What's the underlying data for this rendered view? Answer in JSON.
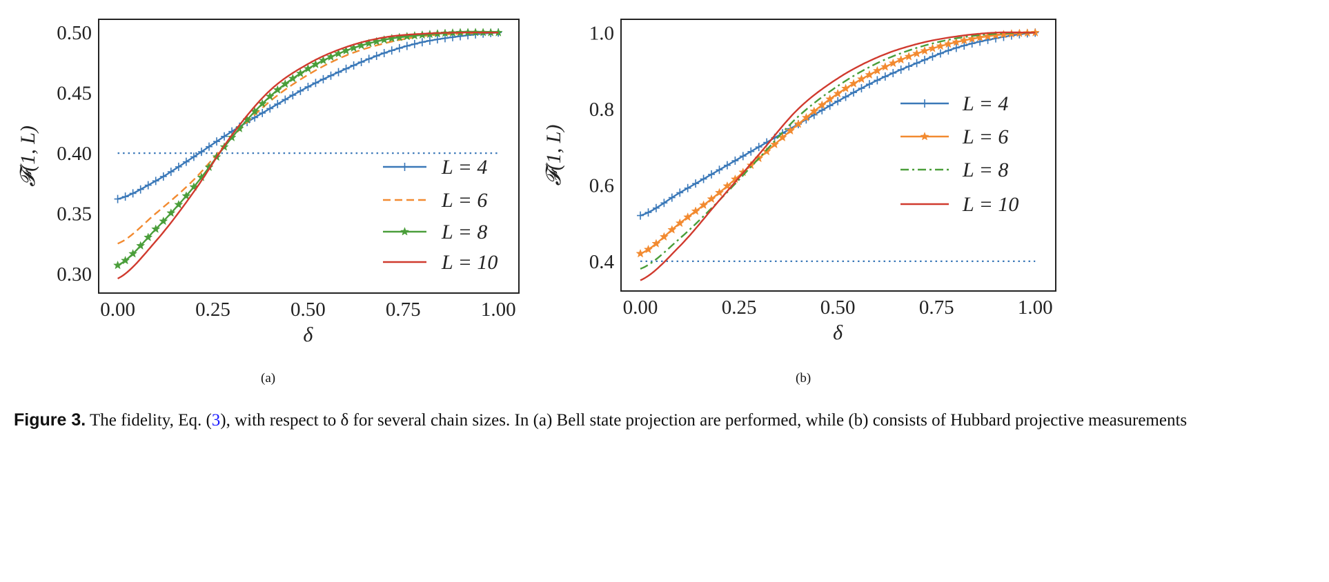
{
  "colors": {
    "blue": "#3a78b8",
    "orange": "#f28a30",
    "green": "#4a9e3a",
    "red": "#d03a2e",
    "axis": "#222222"
  },
  "chart_data": [
    {
      "type": "line",
      "panel_label": "(a)",
      "xlabel": "δ",
      "ylabel": "𝓕(1, L)",
      "xlim": [
        -0.05,
        1.054
      ],
      "ylim": [
        0.284,
        0.511
      ],
      "xticks": [
        0.0,
        0.25,
        0.5,
        0.75,
        1.0
      ],
      "xtick_labels": [
        "0.00",
        "0.25",
        "0.50",
        "0.75",
        "1.00"
      ],
      "yticks": [
        0.3,
        0.35,
        0.4,
        0.45,
        0.5
      ],
      "ytick_labels": [
        "0.30",
        "0.35",
        "0.40",
        "0.45",
        "0.50"
      ],
      "grid": false,
      "legend_position": "lower-right",
      "x": [
        0,
        0.1,
        0.2,
        0.3,
        0.4,
        0.5,
        0.6,
        0.7,
        0.8,
        0.9,
        1.0
      ],
      "series": [
        {
          "name": "L = 4",
          "color": "#3a78b8",
          "style": "solid",
          "marker": "plus",
          "values": [
            0.362,
            0.377,
            0.397,
            0.418,
            0.437,
            0.455,
            0.47,
            0.483,
            0.492,
            0.497,
            0.5
          ]
        },
        {
          "name": "L = 6",
          "color": "#f28a30",
          "style": "dashed",
          "marker": "none",
          "values": [
            0.325,
            0.35,
            0.378,
            0.413,
            0.443,
            0.465,
            0.481,
            0.491,
            0.497,
            0.499,
            0.5
          ]
        },
        {
          "name": "L = 8",
          "color": "#4a9e3a",
          "style": "solid",
          "marker": "star",
          "values": [
            0.307,
            0.337,
            0.372,
            0.413,
            0.447,
            0.47,
            0.485,
            0.494,
            0.498,
            0.5,
            0.5
          ]
        },
        {
          "name": "L = 10",
          "color": "#d03a2e",
          "style": "solid",
          "marker": "none",
          "values": [
            0.296,
            0.327,
            0.368,
            0.415,
            0.452,
            0.474,
            0.488,
            0.496,
            0.499,
            0.5,
            0.5
          ]
        }
      ],
      "reference_line": {
        "y": 0.4,
        "x_range": [
          0,
          1
        ],
        "color": "#3a78b8",
        "style": "dotted"
      }
    },
    {
      "type": "line",
      "panel_label": "(b)",
      "xlabel": "δ",
      "ylabel": "𝓕(1, L)",
      "xlim": [
        -0.049,
        1.052
      ],
      "ylim": [
        0.322,
        1.035
      ],
      "xticks": [
        0.0,
        0.25,
        0.5,
        0.75,
        1.0
      ],
      "xtick_labels": [
        "0.00",
        "0.25",
        "0.50",
        "0.75",
        "1.00"
      ],
      "yticks": [
        0.4,
        0.6,
        0.8,
        1.0
      ],
      "ytick_labels": [
        "0.4",
        "0.6",
        "0.8",
        "1.0"
      ],
      "grid": false,
      "legend_position": "upper-right",
      "x": [
        0,
        0.1,
        0.2,
        0.3,
        0.4,
        0.5,
        0.6,
        0.7,
        0.8,
        0.9,
        1.0
      ],
      "series": [
        {
          "name": "L = 4",
          "color": "#3a78b8",
          "style": "solid",
          "marker": "plus",
          "values": [
            0.52,
            0.58,
            0.64,
            0.7,
            0.76,
            0.82,
            0.875,
            0.92,
            0.96,
            0.985,
            1.0
          ]
        },
        {
          "name": "L = 6",
          "color": "#f28a30",
          "style": "solid",
          "marker": "star",
          "values": [
            0.42,
            0.5,
            0.58,
            0.67,
            0.76,
            0.84,
            0.9,
            0.945,
            0.975,
            0.993,
            1.0
          ]
        },
        {
          "name": "L = 8",
          "color": "#4a9e3a",
          "style": "dashdot",
          "marker": "none",
          "values": [
            0.38,
            0.46,
            0.56,
            0.67,
            0.78,
            0.86,
            0.92,
            0.96,
            0.985,
            0.997,
            1.0
          ]
        },
        {
          "name": "L = 10",
          "color": "#d03a2e",
          "style": "solid",
          "marker": "none",
          "values": [
            0.35,
            0.44,
            0.56,
            0.68,
            0.8,
            0.88,
            0.935,
            0.97,
            0.99,
            1.0,
            1.0
          ]
        }
      ],
      "reference_line": {
        "y": 0.4,
        "x_range": [
          0,
          1
        ],
        "color": "#3a78b8",
        "style": "dotted"
      }
    }
  ],
  "caption": {
    "figure_label": "Figure 3.",
    "text_before_ref": " The fidelity, Eq. (",
    "ref": "3",
    "text_after_ref": "), with respect to δ for several chain sizes. In (a) Bell state projection are performed, while (b) consists of Hubbard projective measurements"
  }
}
